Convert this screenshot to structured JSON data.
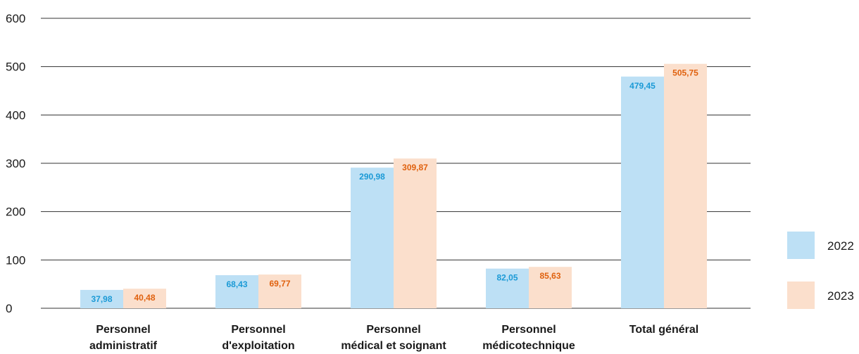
{
  "chart_data": {
    "type": "bar",
    "categories": [
      [
        "Personnel",
        "administratif"
      ],
      [
        "Personnel",
        "d'exploitation"
      ],
      [
        "Personnel",
        "médical et soignant"
      ],
      [
        "Personnel",
        "médicotechnique"
      ],
      [
        "Total général"
      ]
    ],
    "series": [
      {
        "name": "2022",
        "values": [
          37.98,
          68.43,
          290.98,
          82.05,
          479.45
        ],
        "labels": [
          "37,98",
          "68,43",
          "290,98",
          "82,05",
          "479,45"
        ],
        "color": "#bde0f5",
        "label_color": "#1b9ad6"
      },
      {
        "name": "2023",
        "values": [
          40.48,
          69.77,
          309.87,
          85.63,
          505.75
        ],
        "labels": [
          "40,48",
          "69,77",
          "309,87",
          "85,63",
          "505,75"
        ],
        "color": "#fbdfcc",
        "label_color": "#e0610e"
      }
    ],
    "yticks": [
      0,
      100,
      200,
      300,
      400,
      500,
      600
    ],
    "ytick_labels": [
      "0",
      "100",
      "200",
      "300",
      "400",
      "500",
      "600"
    ],
    "ylim": [
      0,
      600
    ],
    "grid": true,
    "grid_color": "#333333",
    "legend_position": "right"
  }
}
